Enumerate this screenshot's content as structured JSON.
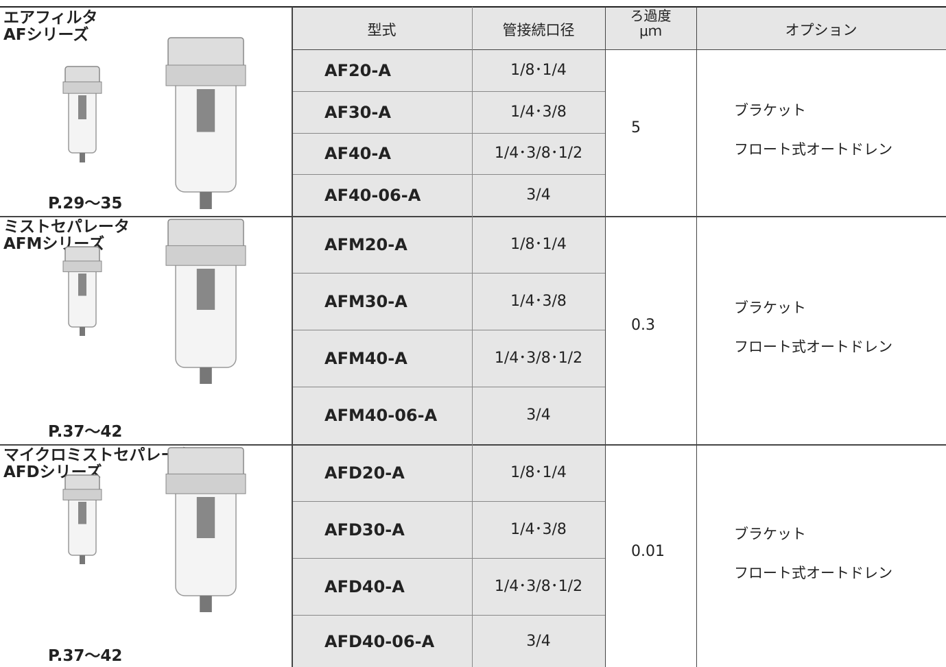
{
  "header": {
    "model": "型式",
    "port": "管接続口径",
    "filtration": "ろ過度",
    "filtration_unit": "μｍ",
    "options": "オプション"
  },
  "groups": [
    {
      "name": "エアフィルタ",
      "series": "AFシリーズ",
      "page": "P.29～35",
      "filtration": "5",
      "options": [
        "ブラケット",
        "フロート式オートドレン"
      ],
      "models": [
        {
          "model": "AF20-A",
          "port": "1/8･1/4"
        },
        {
          "model": "AF30-A",
          "port": "1/4･3/8"
        },
        {
          "model": "AF40-A",
          "port": "1/4･3/8･1/2"
        },
        {
          "model": "AF40-06-A",
          "port": "3/4"
        }
      ]
    },
    {
      "name": "ミストセパレータ",
      "series": "AFMシリーズ",
      "page": "P.37～42",
      "filtration": "0.3",
      "options": [
        "ブラケット",
        "フロート式オートドレン"
      ],
      "models": [
        {
          "model": "AFM20-A",
          "port": "1/8･1/4"
        },
        {
          "model": "AFM30-A",
          "port": "1/4･3/8"
        },
        {
          "model": "AFM40-A",
          "port": "1/4･3/8･1/2"
        },
        {
          "model": "AFM40-06-A",
          "port": "3/4"
        }
      ]
    },
    {
      "name": "マイクロミストセパレータ",
      "series": "AFDシリーズ",
      "page": "P.37～42",
      "filtration": "0.01",
      "options": [
        "ブラケット",
        "フロート式オートドレン"
      ],
      "models": [
        {
          "model": "AFD20-A",
          "port": "1/8･1/4"
        },
        {
          "model": "AFD30-A",
          "port": "1/4･3/8"
        },
        {
          "model": "AFD40-A",
          "port": "1/4･3/8･1/2"
        },
        {
          "model": "AFD40-06-A",
          "port": "3/4"
        }
      ]
    }
  ]
}
